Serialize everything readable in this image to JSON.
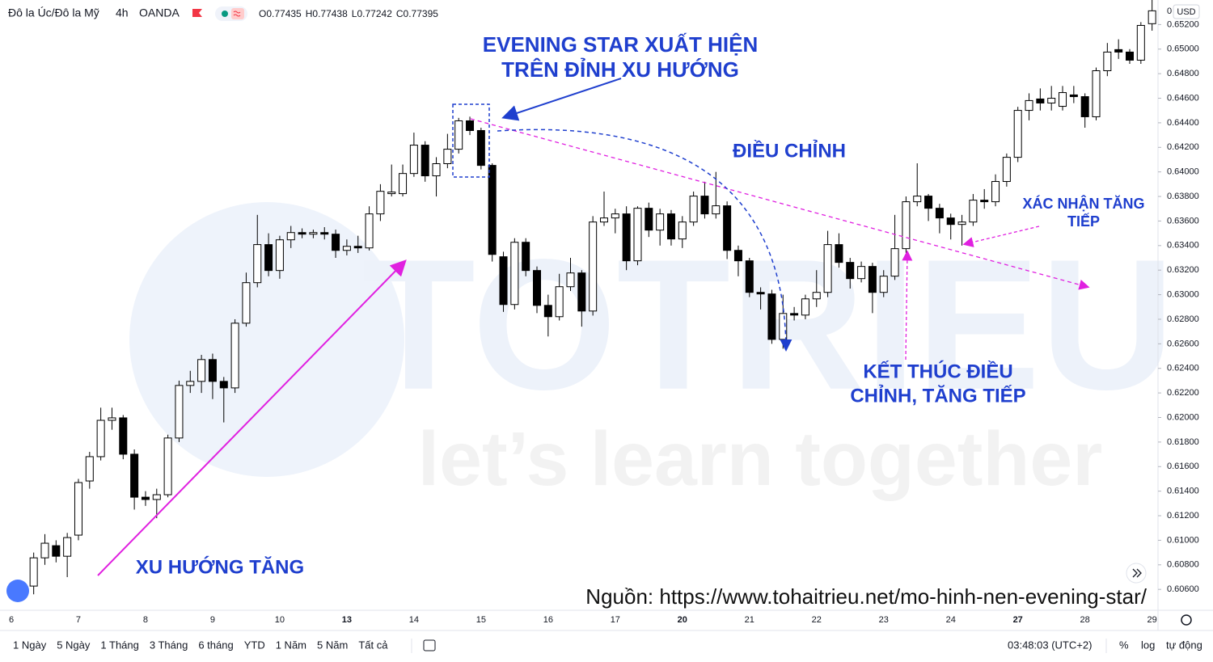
{
  "header": {
    "symbol": "Đô la Úc/Đô la Mỹ",
    "interval": "4h",
    "exchange": "OANDA",
    "ohlc": [
      {
        "label": "O",
        "value": 0.77435
      },
      {
        "label": "H",
        "value": 0.77438
      },
      {
        "label": "L",
        "value": 0.77242
      },
      {
        "label": "C",
        "value": 0.77395
      }
    ]
  },
  "chart_data": {
    "type": "candlestick",
    "currency": "USD",
    "last_price_label": "0",
    "categories": [
      "6",
      null,
      null,
      null,
      null,
      null,
      "7",
      null,
      null,
      null,
      null,
      null,
      "8",
      null,
      null,
      null,
      null,
      null,
      "9",
      null,
      null,
      null,
      null,
      null,
      "10",
      null,
      null,
      null,
      null,
      null,
      "13",
      null,
      null,
      null,
      null,
      null,
      "14",
      null,
      null,
      null,
      null,
      null,
      "15",
      null,
      null,
      null,
      null,
      null,
      "16",
      null,
      null,
      null,
      null,
      null,
      "17",
      null,
      null,
      null,
      null,
      null,
      "20",
      null,
      null,
      null,
      null,
      null,
      "21",
      null,
      null,
      null,
      null,
      null,
      "22",
      null,
      null,
      null,
      null,
      null,
      "23",
      null,
      null,
      null,
      null,
      null,
      "24",
      null,
      null,
      null,
      null,
      null,
      "27",
      null,
      null,
      null,
      null,
      null,
      "28",
      null,
      null,
      null,
      null,
      null,
      "29"
    ],
    "open": [
      null,
      null,
      0.60627,
      0.60857,
      0.60956,
      0.6087,
      0.61042,
      0.61483,
      0.61681,
      0.61977,
      0.61997,
      0.61701,
      0.61351,
      0.61332,
      0.61371,
      0.61833,
      0.62261,
      0.62294,
      0.62472,
      0.62294,
      0.62241,
      0.62768,
      0.63098,
      0.63408,
      0.63197,
      0.63447,
      0.63506,
      0.63493,
      0.63506,
      0.63493,
      0.63361,
      0.63394,
      0.63381,
      0.63658,
      0.63823,
      0.63823,
      0.63987,
      0.64218,
      0.63968,
      0.64067,
      0.64185,
      0.64416,
      0.64337,
      0.64053,
      0.63309,
      0.6292,
      0.63427,
      0.63197,
      0.62913,
      0.62821,
      0.63065,
      0.63177,
      0.62867,
      0.63592,
      0.63625,
      0.63658,
      0.63276,
      0.63704,
      0.63526,
      0.63658,
      0.63454,
      0.63592,
      0.63803,
      0.63658,
      0.63724,
      0.63361,
      0.63276,
      0.63019,
      0.63006,
      0.62636,
      0.62847,
      0.62834,
      0.62966,
      0.63019,
      0.63408,
      0.63263,
      0.63131,
      0.6323,
      0.63019,
      0.63151,
      0.63375,
      0.63757,
      0.63803,
      0.63704,
      0.63625,
      0.63572,
      0.63592,
      0.6377,
      0.63757,
      0.63922,
      0.64119,
      0.64501,
      0.64594,
      0.64561,
      0.64534,
      0.64627,
      0.64613,
      0.64449,
      0.64824,
      0.64996,
      0.64976,
      0.6491,
      0.65207
    ],
    "high": [
      null,
      null,
      0.609,
      0.6105,
      0.61,
      0.6106,
      0.615,
      0.6172,
      0.6208,
      0.6208,
      0.6202,
      0.6174,
      0.614,
      0.6142,
      0.6186,
      0.623,
      0.6238,
      0.6251,
      0.6252,
      0.6233,
      0.628,
      0.6318,
      0.6365,
      0.635,
      0.6348,
      0.6356,
      0.6354,
      0.6353,
      0.6355,
      0.6353,
      0.6345,
      0.6348,
      0.6372,
      0.639,
      0.6406,
      0.6406,
      0.6432,
      0.6425,
      0.6412,
      0.6431,
      0.6444,
      0.6445,
      0.6436,
      0.6407,
      0.6335,
      0.6346,
      0.6346,
      0.6323,
      0.63,
      0.6317,
      0.633,
      0.632,
      0.6364,
      0.6384,
      0.637,
      0.6372,
      0.6372,
      0.6375,
      0.637,
      0.6369,
      0.6364,
      0.6384,
      0.6392,
      0.64,
      0.6376,
      0.634,
      0.633,
      0.6306,
      0.6304,
      0.63,
      0.629,
      0.63,
      0.632,
      0.6352,
      0.635,
      0.633,
      0.6327,
      0.6326,
      0.632,
      0.6365,
      0.638,
      0.6407,
      0.6382,
      0.6374,
      0.6366,
      0.6365,
      0.6382,
      0.6386,
      0.6398,
      0.6415,
      0.6453,
      0.6464,
      0.6468,
      0.647,
      0.647,
      0.647,
      0.6464,
      0.6485,
      0.6505,
      0.6508,
      0.65,
      0.6522,
      0.654
    ],
    "low": [
      null,
      null,
      0.6056,
      0.608,
      0.6082,
      0.607,
      0.61,
      0.6142,
      0.6165,
      0.619,
      0.6166,
      0.6125,
      0.6128,
      0.6118,
      0.6135,
      0.618,
      0.622,
      0.622,
      0.6215,
      0.6196,
      0.622,
      0.6274,
      0.6306,
      0.6315,
      0.6313,
      0.6338,
      0.6346,
      0.6346,
      0.6345,
      0.633,
      0.6332,
      0.6334,
      0.6336,
      0.636,
      0.638,
      0.638,
      0.6396,
      0.6392,
      0.638,
      0.6403,
      0.6415,
      0.643,
      0.6402,
      0.6327,
      0.6286,
      0.6288,
      0.6315,
      0.6285,
      0.6266,
      0.6279,
      0.6303,
      0.6274,
      0.6283,
      0.6356,
      0.635,
      0.632,
      0.6324,
      0.6347,
      0.634,
      0.634,
      0.6338,
      0.6356,
      0.6362,
      0.6362,
      0.6329,
      0.6315,
      0.6298,
      0.6288,
      0.626,
      0.6256,
      0.6279,
      0.628,
      0.629,
      0.6298,
      0.6322,
      0.6305,
      0.631,
      0.6285,
      0.6298,
      0.6312,
      0.6334,
      0.6372,
      0.636,
      0.635,
      0.6345,
      0.634,
      0.6356,
      0.637,
      0.6372,
      0.6388,
      0.6408,
      0.6442,
      0.645,
      0.645,
      0.645,
      0.6456,
      0.6436,
      0.6442,
      0.6478,
      0.6492,
      0.6488,
      0.6488,
      0.6515
    ],
    "close": [
      null,
      null,
      0.60857,
      0.60976,
      0.6087,
      0.61022,
      0.6147,
      0.61681,
      0.61977,
      0.61997,
      0.61701,
      0.61351,
      0.61332,
      0.61371,
      0.61833,
      0.62261,
      0.62294,
      0.62472,
      0.62294,
      0.62241,
      0.62768,
      0.63098,
      0.63408,
      0.63197,
      0.63447,
      0.63506,
      0.63493,
      0.63506,
      0.63493,
      0.63361,
      0.63394,
      0.63381,
      0.63658,
      0.63842,
      0.63836,
      0.63987,
      0.64218,
      0.63968,
      0.64067,
      0.64185,
      0.64416,
      0.64337,
      0.64053,
      0.63328,
      0.6292,
      0.63427,
      0.63197,
      0.62913,
      0.62821,
      0.63065,
      0.63177,
      0.62867,
      0.63592,
      0.63625,
      0.63658,
      0.63276,
      0.63704,
      0.63526,
      0.63658,
      0.63454,
      0.63592,
      0.63803,
      0.63658,
      0.63724,
      0.63361,
      0.63276,
      0.63019,
      0.63006,
      0.62636,
      0.62847,
      0.62834,
      0.62966,
      0.63019,
      0.63408,
      0.63263,
      0.63131,
      0.6323,
      0.63019,
      0.63151,
      0.63375,
      0.63757,
      0.63803,
      0.63704,
      0.63625,
      0.63572,
      0.63592,
      0.6377,
      0.63757,
      0.63922,
      0.64119,
      0.64501,
      0.64581,
      0.64561,
      0.646,
      0.64646,
      0.64613,
      0.64449,
      0.64824,
      0.64976,
      0.64976,
      0.6491,
      0.65193,
      0.65312
    ],
    "up_color": "#ffffff",
    "down_color": "#000000",
    "wick_color": "#000000",
    "ylim": [
      0.6043,
      0.654
    ],
    "yticks": [
      {
        "value": 0.652,
        "label": "0.65200"
      },
      {
        "value": 0.65,
        "label": "0.65000"
      },
      {
        "value": 0.648,
        "label": "0.64800"
      },
      {
        "value": 0.646,
        "label": "0.64600"
      },
      {
        "value": 0.644,
        "label": "0.64400"
      },
      {
        "value": 0.642,
        "label": "0.64200"
      },
      {
        "value": 0.64,
        "label": "0.64000"
      },
      {
        "value": 0.638,
        "label": "0.63800"
      },
      {
        "value": 0.636,
        "label": "0.63600"
      },
      {
        "value": 0.634,
        "label": "0.63400"
      },
      {
        "value": 0.632,
        "label": "0.63200"
      },
      {
        "value": 0.63,
        "label": "0.63000"
      },
      {
        "value": 0.628,
        "label": "0.62800"
      },
      {
        "value": 0.626,
        "label": "0.62600"
      },
      {
        "value": 0.624,
        "label": "0.62400"
      },
      {
        "value": 0.622,
        "label": "0.62200"
      },
      {
        "value": 0.62,
        "label": "0.62000"
      },
      {
        "value": 0.618,
        "label": "0.61800"
      },
      {
        "value": 0.616,
        "label": "0.61600"
      },
      {
        "value": 0.614,
        "label": "0.61400"
      },
      {
        "value": 0.612,
        "label": "0.61200"
      },
      {
        "value": 0.61,
        "label": "0.61000"
      },
      {
        "value": 0.608,
        "label": "0.60800"
      },
      {
        "value": 0.606,
        "label": "0.60600"
      }
    ],
    "grid": false,
    "annotations": [
      {
        "lines": [
          "EVENING STAR XUẤT HIỆN",
          "TRÊN ĐỈNH XU HƯỚNG"
        ],
        "color": "#1f3fce"
      },
      {
        "lines": [
          "ĐIỀU CHỈNH"
        ],
        "color": "#1f3fce"
      },
      {
        "lines": [
          "XÁC NHẬN TĂNG",
          "TIẾP"
        ],
        "color": "#1f3fce"
      },
      {
        "lines": [
          "KẾT THÚC ĐIỀU",
          "CHỈNH, TĂNG TIẾP"
        ],
        "color": "#1f3fce"
      },
      {
        "lines": [
          "XU HƯỚNG TĂNG"
        ],
        "color": "#1f3fce"
      }
    ],
    "watermark": [
      "TOTRIEU",
      "let’s learn together"
    ],
    "source": "Nguồn: https://www.tohaitrieu.net/mo-hinh-nen-evening-star/"
  },
  "toolbar": {
    "ranges": [
      "1 Ngày",
      "5 Ngày",
      "1 Tháng",
      "3 Tháng",
      "6 tháng",
      "YTD",
      "1 Năm",
      "5 Năm",
      "Tất cả"
    ],
    "time": "03:48:03 (UTC+2)",
    "percent": "%",
    "log": "log",
    "auto": "tự động"
  }
}
